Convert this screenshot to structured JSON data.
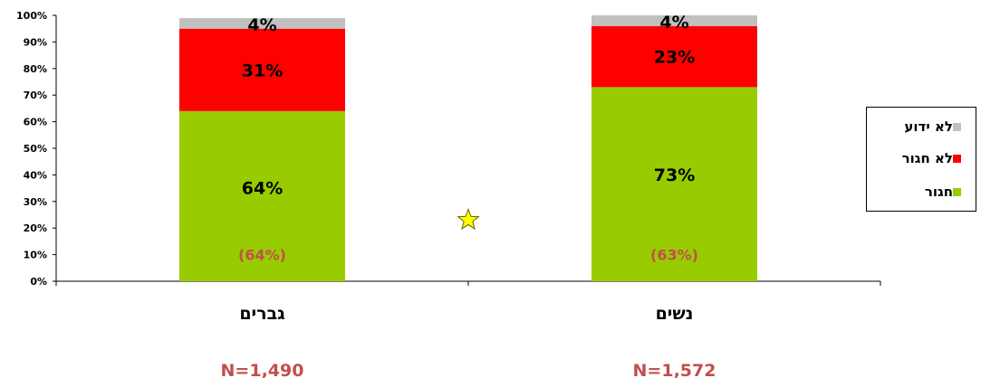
{
  "chart_data": {
    "type": "bar",
    "stacked": true,
    "categories": [
      "גברים",
      "נשים"
    ],
    "sample_sizes": [
      "N=1,490",
      "N=1,572"
    ],
    "series": [
      {
        "name": "חגור",
        "values": [
          64,
          73
        ],
        "labels": [
          "64%",
          "73%"
        ],
        "color": "#99cc00"
      },
      {
        "name": "לא חגור",
        "values": [
          31,
          23
        ],
        "labels": [
          "31%",
          "23%"
        ],
        "color": "#ff0000"
      },
      {
        "name": "לא ידוע",
        "values": [
          4,
          4
        ],
        "labels": [
          "4%",
          "4%"
        ],
        "color": "#c0c0c0"
      }
    ],
    "previous_values": [
      "(64%)",
      "(63%)"
    ],
    "previous_color": "#c0504d",
    "y_ticks": [
      "0%",
      "10%",
      "20%",
      "30%",
      "40%",
      "50%",
      "60%",
      "70%",
      "80%",
      "90%",
      "100%"
    ],
    "ylim": [
      0,
      100
    ],
    "legend_position": "right",
    "marker": "star",
    "marker_color": "#ffff00"
  }
}
